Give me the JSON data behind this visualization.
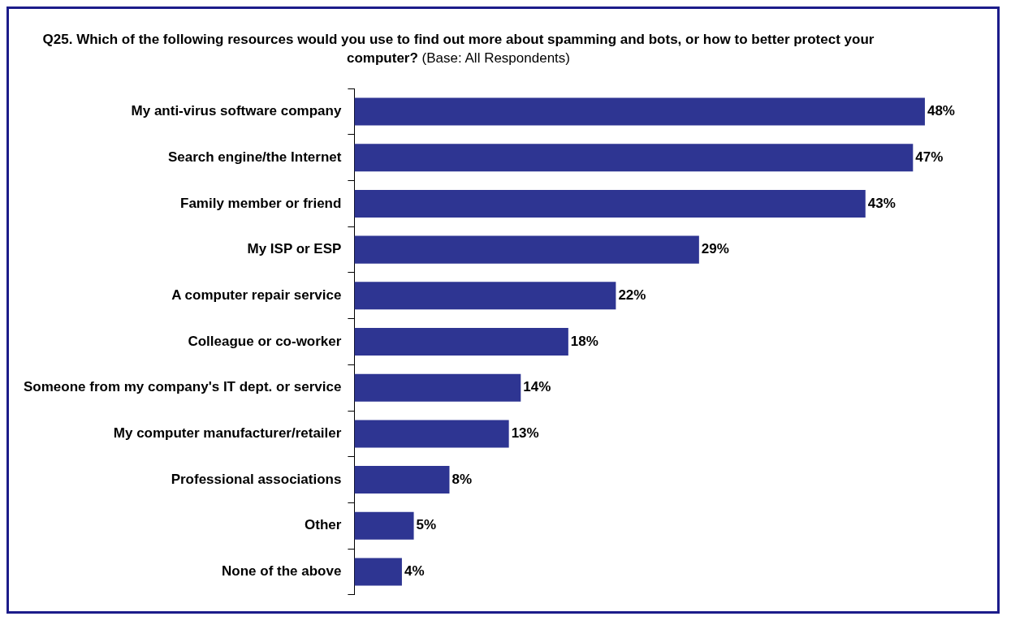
{
  "chart_data": {
    "type": "bar",
    "orientation": "horizontal",
    "title": "Q25. Which of the following resources would you use to find out more about spamming and bots, or how to better protect your computer?",
    "subtitle": "(Base: All Respondents)",
    "categories": [
      "My anti-virus software company",
      "Search engine/the Internet",
      "Family member or friend",
      "My ISP or ESP",
      "A computer repair service",
      "Colleague or co-worker",
      "Someone from my company's IT dept. or service",
      "My computer manufacturer/retailer",
      "Professional associations",
      "Other",
      "None of the above"
    ],
    "values": [
      48,
      47,
      43,
      29,
      22,
      18,
      14,
      13,
      8,
      5,
      4
    ],
    "value_labels": [
      "48%",
      "47%",
      "43%",
      "29%",
      "22%",
      "18%",
      "14%",
      "13%",
      "8%",
      "5%",
      "4%"
    ],
    "color": "#2e3592",
    "legend": false
  }
}
